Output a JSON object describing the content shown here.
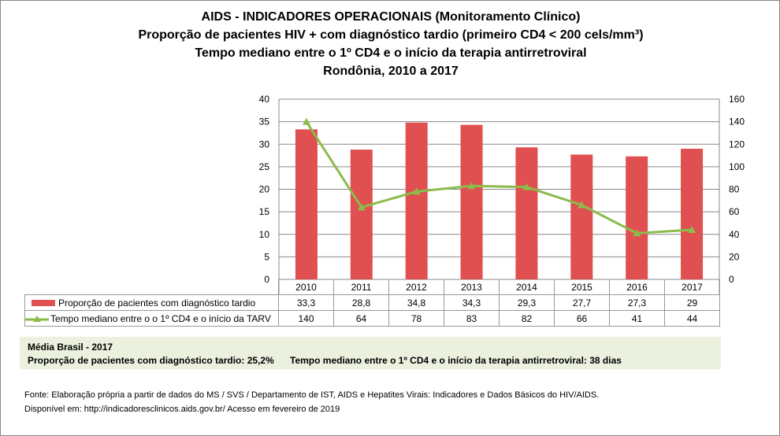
{
  "titles": [
    "AIDS - INDICADORES OPERACIONAIS (Monitoramento Clínico)",
    "Proporção de pacientes HIV + com diagnóstico tardio (primeiro CD4 < 200 cels/mm³)",
    "Tempo mediano entre o 1º CD4 e o início da terapia antirretroviral",
    "Rondônia, 2010 a 2017"
  ],
  "chart_data": {
    "type": "bar",
    "categories": [
      "2010",
      "2011",
      "2012",
      "2013",
      "2014",
      "2015",
      "2016",
      "2017"
    ],
    "series": [
      {
        "name": "Proporção de pacientes com diagnóstico tardio",
        "type": "bar",
        "axis": "left",
        "color": "#e05050",
        "values": [
          33.3,
          28.8,
          34.8,
          34.3,
          29.3,
          27.7,
          27.3,
          29
        ],
        "labels": [
          "33,3",
          "28,8",
          "34,8",
          "34,3",
          "29,3",
          "27,7",
          "27,3",
          "29"
        ]
      },
      {
        "name": "Tempo mediano entre o o 1º CD4 e o início da TARV",
        "type": "line",
        "axis": "right",
        "marker": "triangle",
        "color": "#8cbb4c",
        "values": [
          140,
          64,
          78,
          83,
          82,
          66,
          41,
          44
        ],
        "labels": [
          "140",
          "64",
          "78",
          "83",
          "82",
          "66",
          "41",
          "44"
        ]
      }
    ],
    "ylim_left": [
      0,
      40
    ],
    "yticks_left": [
      "0",
      "5",
      "10",
      "15",
      "20",
      "25",
      "30",
      "35",
      "40"
    ],
    "ylim_right": [
      0,
      160
    ],
    "yticks_right": [
      "0",
      "20",
      "40",
      "60",
      "80",
      "100",
      "120",
      "140",
      "160"
    ],
    "grid": true,
    "legend": "data-table"
  },
  "media": {
    "title": "Média Brasil - 2017",
    "line1": "Proporção de pacientes com diagnóstico  tardio: 25,2%",
    "line2": "Tempo mediano entre o 1º CD4 e o início da terapia antirretroviral: 38 dias"
  },
  "fonte": [
    "Fonte: Elaboração própria a partir de dados do  MS / SVS / Departamento de IST, AIDS e Hepatites Virais: Indicadores e Dados Básicos do HIV/AIDS.",
    "Disponível em: http://indicadoresclinicos.aids.gov.br/ Acesso em fevereiro de 2019"
  ]
}
